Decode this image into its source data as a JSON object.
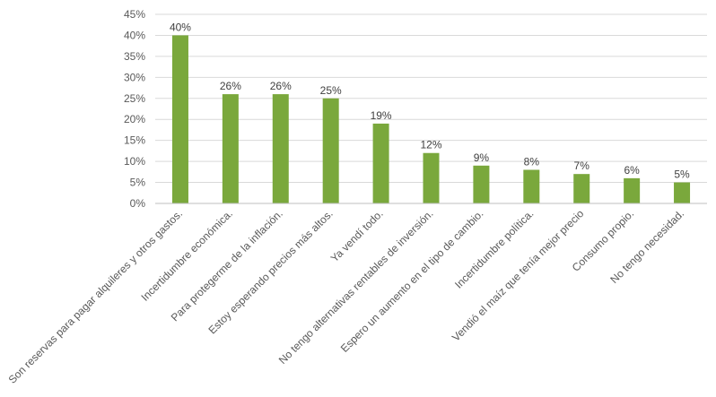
{
  "chart_data": {
    "type": "bar",
    "categories": [
      "Son reservas para pagar alquileres y otros gastos.",
      "Incertidumbre económica.",
      "Para protegerme de la inflación.",
      "Estoy esperando precios más altos.",
      "Ya vendí todo.",
      "No tengo alternativas rentables de inversión.",
      "Espero un aumento en el tipo de cambio.",
      "Incertidumbre política.",
      "Vendió el maíz que tenía mejor precio",
      "Consumo propio.",
      "No tengo necesidad."
    ],
    "values": [
      40,
      26,
      26,
      25,
      19,
      12,
      9,
      8,
      7,
      6,
      5
    ],
    "data_labels": [
      "40%",
      "26%",
      "26%",
      "25%",
      "19%",
      "12%",
      "9%",
      "8%",
      "7%",
      "6%",
      "5%"
    ],
    "yticks": [
      0,
      5,
      10,
      15,
      20,
      25,
      30,
      35,
      40,
      45
    ],
    "ytick_labels": [
      "0%",
      "5%",
      "10%",
      "15%",
      "20%",
      "25%",
      "30%",
      "35%",
      "40%",
      "45%"
    ],
    "ylim": [
      0,
      45
    ],
    "grid": true,
    "bar_color": "#7aa83c",
    "title": "",
    "xlabel": "",
    "ylabel": ""
  }
}
